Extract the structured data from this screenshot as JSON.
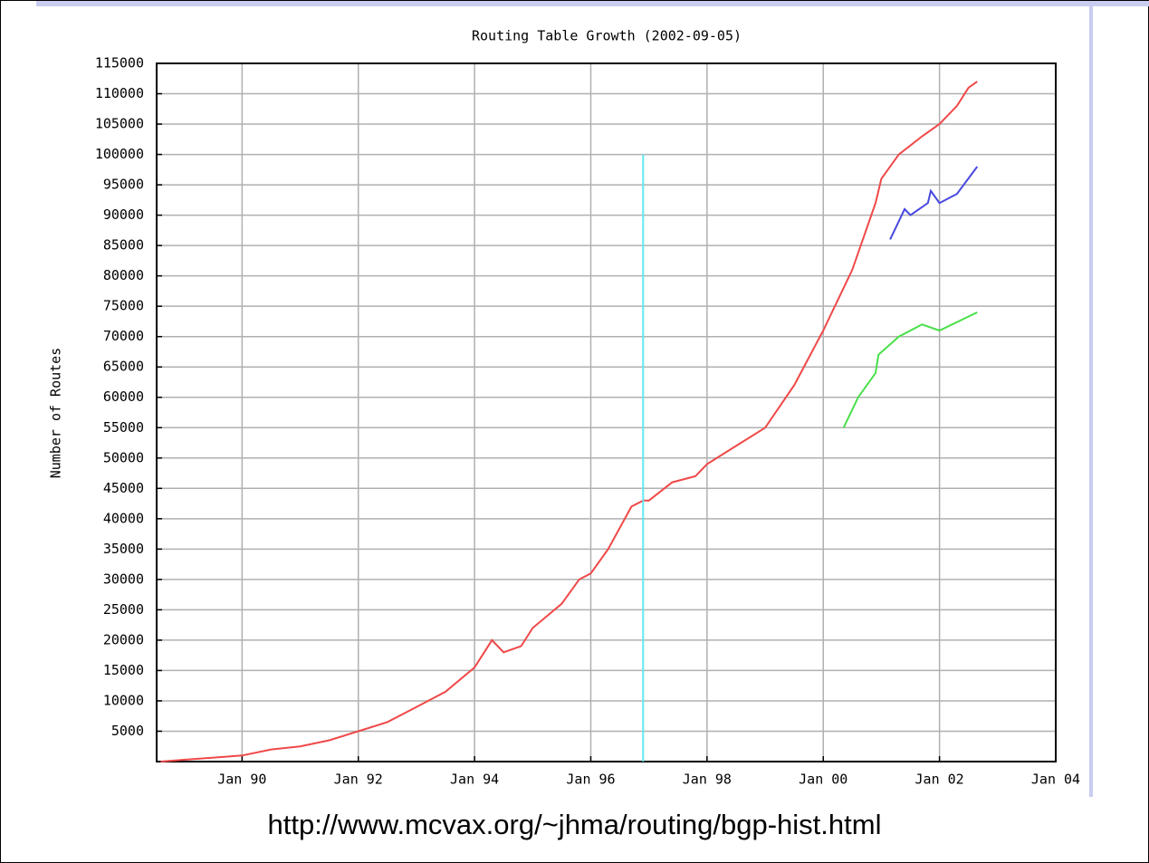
{
  "chart_data": {
    "type": "line",
    "title": "Routing Table Growth (2002-09-05)",
    "y_label": "Number of Routes",
    "xlim": [
      1988.53,
      2004
    ],
    "xticks": [
      {
        "value": 1990,
        "label": "Jan 90"
      },
      {
        "value": 1992,
        "label": "Jan 92"
      },
      {
        "value": 1994,
        "label": "Jan 94"
      },
      {
        "value": 1996,
        "label": "Jan 96"
      },
      {
        "value": 1998,
        "label": "Jan 98"
      },
      {
        "value": 2000,
        "label": "Jan 00"
      },
      {
        "value": 2002,
        "label": "Jan 02"
      },
      {
        "value": 2004,
        "label": "Jan 04"
      }
    ],
    "ylim": [
      0,
      115000
    ],
    "yticks": [
      5000,
      10000,
      15000,
      20000,
      25000,
      30000,
      35000,
      40000,
      45000,
      50000,
      55000,
      60000,
      65000,
      70000,
      75000,
      80000,
      85000,
      90000,
      95000,
      100000,
      105000,
      110000,
      115000
    ],
    "grid": true,
    "series": [
      {
        "color": "#f04848",
        "x": [
          1988.6,
          1989,
          1990,
          1990.5,
          1991,
          1991.5,
          1992,
          1992.5,
          1993,
          1993.5,
          1994,
          1994.3,
          1994.5,
          1994.8,
          1995,
          1995.5,
          1995.8,
          1996,
          1996.3,
          1996.7,
          1996.9,
          1997,
          1997.4,
          1997.8,
          1998,
          1998.5,
          1999,
          1999.5,
          2000,
          2000.5,
          2000.9,
          2001,
          2001.3,
          2001.7,
          2002,
          2002.3,
          2002.5,
          2002.65
        ],
        "values": [
          0,
          300,
          1000,
          2000,
          2500,
          3500,
          5000,
          6500,
          9000,
          11500,
          15500,
          20000,
          18000,
          19000,
          22000,
          26000,
          30000,
          31000,
          35000,
          42000,
          43000,
          43000,
          46000,
          47000,
          49000,
          52000,
          55000,
          62000,
          71000,
          81000,
          92000,
          96000,
          100000,
          103000,
          105000,
          108000,
          111000,
          112000
        ]
      },
      {
        "color": "#4848e0",
        "x": [
          2001.15,
          2001.4,
          2001.5,
          2001.8,
          2001.85,
          2002,
          2002.3,
          2002.65
        ],
        "values": [
          86000,
          91000,
          90000,
          92000,
          94000,
          92000,
          93500,
          98000
        ]
      },
      {
        "color": "#48e048",
        "x": [
          2000.35,
          2000.6,
          2000.9,
          2000.95,
          2001.3,
          2001.7,
          2002,
          2002.65
        ],
        "values": [
          55000,
          60000,
          64000,
          67000,
          70000,
          72000,
          71000,
          74000
        ]
      },
      {
        "color": "#60e8f0",
        "x": [
          1996.9,
          1996.9
        ],
        "values": [
          0,
          100000
        ]
      }
    ]
  },
  "footer": "http://www.mcvax.org/~jhma/routing/bgp-hist.html"
}
